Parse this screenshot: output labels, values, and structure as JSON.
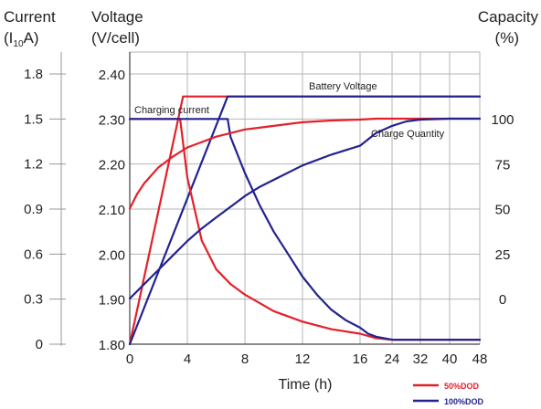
{
  "chart_data": {
    "type": "line",
    "title": "",
    "xlabel": "Time (h)",
    "x_ticks": [
      "0",
      "4",
      "8",
      "12",
      "16",
      "24",
      "32",
      "40",
      "48"
    ],
    "x_tick_hours": [
      0,
      4,
      8,
      12,
      16,
      24,
      32,
      40,
      48
    ],
    "x_scale": "piecewise: linear 0-16 h, compressed 16-48 h",
    "axes": {
      "current": {
        "label_line1": "Current",
        "label_line2_pre": "(I",
        "label_line2_sub": "10",
        "label_line2_post": "A)",
        "ticks": [
          "1.8",
          "1.5",
          "1.2",
          "0.9",
          "0.6",
          "0.3",
          "0"
        ],
        "range": [
          0,
          1.8
        ]
      },
      "voltage": {
        "label_line1": "Voltage",
        "label_line2": "(V/cell)",
        "ticks": [
          "2.40",
          "2.30",
          "2.20",
          "2.10",
          "2.00",
          "1.90",
          "1.80"
        ],
        "range": [
          1.8,
          2.4
        ]
      },
      "capacity": {
        "label_line1": "Capacity",
        "label_line2": "(%)",
        "ticks": [
          "100",
          "75",
          "50",
          "25",
          "0"
        ],
        "range": [
          0,
          100
        ]
      }
    },
    "annotations": {
      "battery_voltage": "Battery Voltage",
      "charging_current": "Charging current",
      "charge_quantity": "Charge Quantity"
    },
    "grid": true,
    "legend_position": "bottom-right",
    "series": [
      {
        "name": "50%DOD",
        "color": "#e3202a",
        "kind": "voltage",
        "axis": "voltage",
        "x": [
          0,
          3.7,
          48
        ],
        "y": [
          1.8,
          2.35,
          2.35
        ]
      },
      {
        "name": "100%DOD",
        "color": "#23238e",
        "kind": "voltage",
        "axis": "voltage",
        "x": [
          0,
          6.8,
          48
        ],
        "y": [
          1.8,
          2.35,
          2.35
        ]
      },
      {
        "name": "50%DOD",
        "color": "#e3202a",
        "kind": "current",
        "axis": "current",
        "x": [
          0,
          3.5,
          4,
          5,
          6,
          7,
          8,
          10,
          12,
          14,
          16,
          20,
          24,
          32,
          48
        ],
        "y": [
          1.5,
          1.5,
          1.11,
          0.69,
          0.5,
          0.4,
          0.33,
          0.22,
          0.15,
          0.1,
          0.07,
          0.04,
          0.03,
          0.03,
          0.03
        ]
      },
      {
        "name": "100%DOD",
        "color": "#23238e",
        "kind": "current",
        "axis": "current",
        "x": [
          0,
          6.8,
          7,
          8,
          9,
          10,
          11,
          12,
          13,
          14,
          15,
          16,
          18,
          20,
          24,
          32,
          48
        ],
        "y": [
          1.5,
          1.5,
          1.38,
          1.14,
          0.93,
          0.75,
          0.6,
          0.45,
          0.33,
          0.23,
          0.16,
          0.11,
          0.07,
          0.05,
          0.03,
          0.03,
          0.03
        ]
      },
      {
        "name": "50%DOD",
        "color": "#e3202a",
        "kind": "capacity",
        "axis": "capacity",
        "x": [
          0,
          0.5,
          1,
          2,
          3,
          4,
          5,
          6,
          7,
          8,
          9,
          10,
          12,
          14,
          16,
          20,
          24,
          32,
          48
        ],
        "y": [
          50,
          58,
          64,
          73,
          79,
          84,
          87,
          90,
          92,
          94,
          95,
          96,
          98,
          99,
          99.5,
          100,
          100,
          100,
          100
        ]
      },
      {
        "name": "100%DOD",
        "color": "#23238e",
        "kind": "capacity",
        "axis": "capacity",
        "x": [
          0,
          1,
          2,
          3,
          4,
          5,
          6,
          7,
          8,
          9,
          10,
          12,
          14,
          16,
          20,
          24,
          28,
          32,
          40,
          48
        ],
        "y": [
          0,
          8,
          16,
          24,
          32,
          39,
          45,
          51,
          57,
          62,
          66,
          74,
          80,
          85,
          92,
          96,
          98.5,
          99.5,
          100,
          100
        ]
      }
    ],
    "legend": [
      {
        "label": "50%DOD",
        "color": "#e3202a"
      },
      {
        "label": "100%DOD",
        "color": "#23238e"
      }
    ]
  }
}
